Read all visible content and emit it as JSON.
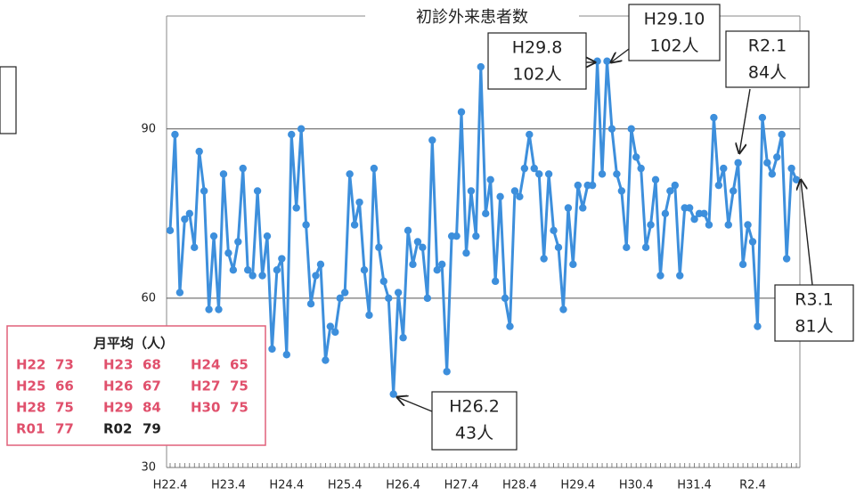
{
  "chart_data": {
    "type": "line",
    "title": "初診外来患者数",
    "categories": [
      "H22.4",
      null,
      null,
      null,
      null,
      null,
      null,
      null,
      null,
      null,
      null,
      null,
      "H23.4",
      null,
      null,
      null,
      null,
      null,
      null,
      null,
      null,
      null,
      null,
      null,
      "H24.4",
      null,
      null,
      null,
      null,
      null,
      null,
      null,
      null,
      null,
      null,
      null,
      "H25.4",
      null,
      null,
      null,
      null,
      null,
      null,
      null,
      null,
      null,
      null,
      null,
      "H26.4",
      null,
      null,
      null,
      null,
      null,
      null,
      null,
      null,
      null,
      null,
      null,
      "H27.4",
      null,
      null,
      null,
      null,
      null,
      null,
      null,
      null,
      null,
      null,
      null,
      "H28.4",
      null,
      null,
      null,
      null,
      null,
      null,
      null,
      null,
      null,
      null,
      null,
      "H29.4",
      null,
      null,
      null,
      null,
      null,
      null,
      null,
      null,
      null,
      null,
      null,
      "H30.4",
      null,
      null,
      null,
      null,
      null,
      null,
      null,
      null,
      null,
      null,
      null,
      "H31.4",
      null,
      null,
      null,
      null,
      null,
      null,
      null,
      null,
      null,
      null,
      null,
      "R2.4",
      null,
      null,
      null,
      null,
      null,
      null,
      null,
      null,
      null
    ],
    "values": [
      72,
      89,
      61,
      74,
      75,
      69,
      86,
      79,
      58,
      71,
      58,
      82,
      68,
      65,
      70,
      83,
      65,
      64,
      79,
      64,
      71,
      51,
      65,
      67,
      50,
      89,
      76,
      90,
      73,
      59,
      64,
      66,
      49,
      55,
      54,
      60,
      61,
      82,
      73,
      77,
      65,
      57,
      83,
      69,
      63,
      60,
      43,
      61,
      53,
      72,
      66,
      70,
      69,
      60,
      88,
      65,
      66,
      47,
      71,
      71,
      93,
      68,
      79,
      71,
      101,
      75,
      81,
      63,
      78,
      60,
      55,
      79,
      78,
      83,
      89,
      83,
      82,
      67,
      82,
      72,
      69,
      58,
      76,
      66,
      80,
      76,
      80,
      80,
      102,
      82,
      102,
      90,
      82,
      79,
      69,
      90,
      85,
      83,
      69,
      73,
      81,
      64,
      75,
      79,
      80,
      64,
      76,
      76,
      74,
      75,
      75,
      73,
      92,
      80,
      83,
      73,
      79,
      84,
      66,
      73,
      70,
      55,
      92,
      84,
      82,
      85,
      89,
      67,
      83,
      81
    ],
    "color": "#3d8fdc",
    "ylim": [
      30,
      110
    ],
    "yticks": [
      30,
      60,
      90
    ],
    "grid": true,
    "annotations": [
      {
        "lines": [
          "H29.8",
          "102人"
        ]
      },
      {
        "lines": [
          "H29.10",
          "102人"
        ]
      },
      {
        "lines": [
          "R2.1",
          "84人"
        ]
      },
      {
        "lines": [
          "R3.1",
          "81人"
        ]
      },
      {
        "lines": [
          "H26.2",
          "43人"
        ]
      }
    ],
    "monthly_average": {
      "title": "月平均（人）",
      "items": [
        {
          "label": "H22",
          "value": "73"
        },
        {
          "label": "H23",
          "value": "68"
        },
        {
          "label": "H24",
          "value": "65"
        },
        {
          "label": "H25",
          "value": "66"
        },
        {
          "label": "H26",
          "value": "67"
        },
        {
          "label": "H27",
          "value": "75"
        },
        {
          "label": "H28",
          "value": "75"
        },
        {
          "label": "H29",
          "value": "84"
        },
        {
          "label": "H30",
          "value": "75"
        },
        {
          "label": "R01",
          "value": "77"
        },
        {
          "label": "R02",
          "value": "79"
        }
      ]
    }
  }
}
